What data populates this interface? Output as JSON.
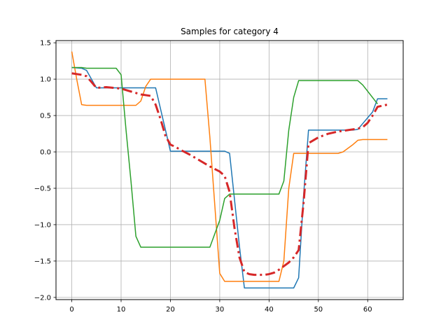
{
  "chart_data": {
    "type": "line",
    "title": "Samples for category 4",
    "xlabel": "",
    "ylabel": "",
    "xlim": [
      -3.2,
      67.2
    ],
    "ylim": [
      -2.03,
      1.53
    ],
    "xticks": [
      0,
      10,
      20,
      30,
      40,
      50,
      60
    ],
    "xtick_labels": [
      "0",
      "10",
      "20",
      "30",
      "40",
      "50",
      "60"
    ],
    "yticks": [
      -2.0,
      -1.5,
      -1.0,
      -0.5,
      0.0,
      0.5,
      1.0,
      1.5
    ],
    "ytick_labels": [
      "−2.0",
      "−1.5",
      "−1.0",
      "−0.5",
      "0.0",
      "0.5",
      "1.0",
      "1.5"
    ],
    "grid": true,
    "series": [
      {
        "color": "#1f77b4",
        "style": "solid",
        "width": 1.5,
        "x": [
          0,
          2,
          3,
          5,
          10,
          17,
          20,
          31,
          32,
          34,
          35,
          45,
          46,
          47,
          48,
          57,
          58,
          61,
          62,
          64
        ],
        "y": [
          1.16,
          1.15,
          1.12,
          0.88,
          0.88,
          0.88,
          0.01,
          0.01,
          -0.02,
          -1.3,
          -1.87,
          -1.87,
          -1.73,
          -0.6,
          0.3,
          0.3,
          0.31,
          0.55,
          0.73,
          0.73
        ]
      },
      {
        "color": "#ff7f0e",
        "style": "solid",
        "width": 1.5,
        "x": [
          0,
          1,
          2,
          3,
          10,
          13,
          14,
          15,
          16,
          27,
          28,
          30,
          31,
          42,
          43,
          44,
          45,
          46,
          54,
          55,
          57,
          58,
          59,
          64
        ],
        "y": [
          1.38,
          1.0,
          0.65,
          0.64,
          0.64,
          0.64,
          0.7,
          0.9,
          1.0,
          1.0,
          0.2,
          -1.67,
          -1.78,
          -1.78,
          -1.5,
          -0.5,
          -0.02,
          -0.02,
          -0.02,
          0.0,
          0.1,
          0.16,
          0.17,
          0.17
        ]
      },
      {
        "color": "#2ca02c",
        "style": "solid",
        "width": 1.5,
        "x": [
          0,
          2,
          3,
          9,
          10,
          11,
          12,
          13,
          14,
          28,
          30,
          31,
          32,
          33,
          42,
          43,
          44,
          45,
          46,
          58,
          59,
          62
        ],
        "y": [
          1.16,
          1.16,
          1.15,
          1.15,
          1.06,
          0.3,
          -0.4,
          -1.16,
          -1.31,
          -1.31,
          -0.94,
          -0.64,
          -0.58,
          -0.58,
          -0.58,
          -0.4,
          0.3,
          0.75,
          0.98,
          0.98,
          0.92,
          0.66
        ]
      },
      {
        "color": "#d62728",
        "style": "dashdot",
        "width": 3,
        "x": [
          0,
          2,
          3,
          5,
          7,
          10,
          12,
          14,
          16,
          17,
          18,
          19,
          20,
          21,
          22,
          24,
          26,
          28,
          30,
          31,
          32,
          33,
          34,
          35,
          36,
          37,
          38,
          39,
          40,
          41,
          42,
          43,
          44,
          45,
          46,
          47,
          48,
          50,
          52,
          54,
          56,
          58,
          59,
          60,
          61,
          62,
          64
        ],
        "y": [
          1.08,
          1.06,
          1.04,
          0.88,
          0.89,
          0.87,
          0.83,
          0.79,
          0.77,
          0.65,
          0.45,
          0.22,
          0.1,
          0.07,
          0.03,
          -0.04,
          -0.12,
          -0.2,
          -0.27,
          -0.33,
          -0.55,
          -1.05,
          -1.45,
          -1.65,
          -1.68,
          -1.69,
          -1.69,
          -1.69,
          -1.68,
          -1.66,
          -1.62,
          -1.57,
          -1.52,
          -1.45,
          -1.35,
          -0.7,
          0.12,
          0.2,
          0.25,
          0.28,
          0.3,
          0.32,
          0.34,
          0.4,
          0.5,
          0.62,
          0.65
        ]
      }
    ]
  }
}
